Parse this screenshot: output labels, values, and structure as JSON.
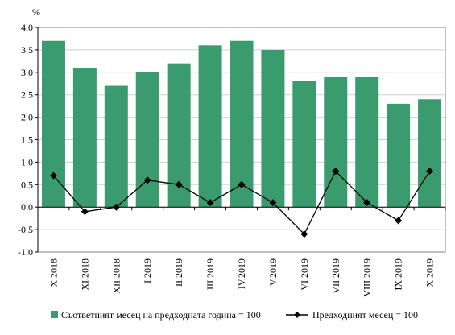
{
  "chart_data": {
    "type": "bar",
    "ylabel": "%",
    "ylim": [
      -1.0,
      4.0
    ],
    "yticks": [
      "4.0",
      "3.5",
      "3.0",
      "2.5",
      "2.0",
      "1.5",
      "1.0",
      "0.5",
      "0.0",
      "-0.5",
      "-1.0"
    ],
    "grid": true,
    "legend_position": "bottom",
    "categories": [
      "X.2018",
      "XI.2018",
      "XII.2018",
      "I.2019",
      "II.2019",
      "III.2019",
      "IV.2019",
      "V.2019",
      "VI.2019",
      "VII.2019",
      "VIII.2019",
      "IX.2019",
      "X.2019"
    ],
    "series": [
      {
        "name": "Съответният месец на предходната година = 100",
        "type": "bar",
        "color": "#3a9c6e",
        "values": [
          3.7,
          3.1,
          2.7,
          3.0,
          3.2,
          3.6,
          3.7,
          3.5,
          2.8,
          2.9,
          2.9,
          2.3,
          2.4
        ]
      },
      {
        "name": "Предходният месец = 100",
        "type": "line",
        "color": "#000000",
        "marker": "diamond",
        "values": [
          0.7,
          -0.1,
          0.0,
          0.6,
          0.5,
          0.1,
          0.5,
          0.1,
          -0.6,
          0.8,
          0.1,
          -0.3,
          0.8
        ]
      }
    ]
  }
}
